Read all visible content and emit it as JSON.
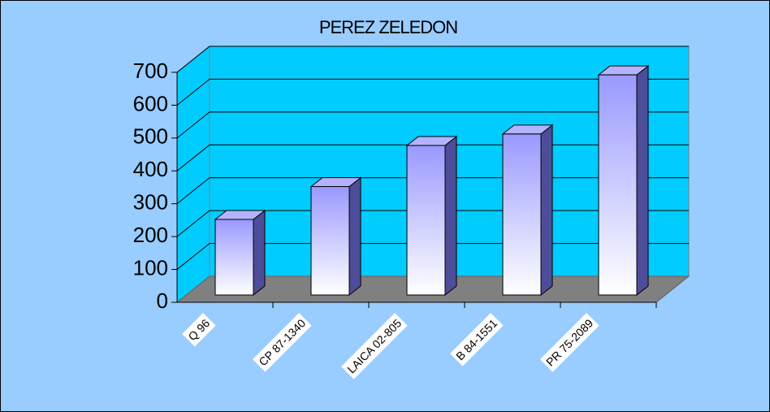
{
  "chart_data": {
    "type": "bar3d",
    "title": "PEREZ ZELEDON",
    "categories": [
      "Q 96",
      "CP 87-1340",
      "LAICA 02-805",
      "B 84-1551",
      "PR 75-2089"
    ],
    "values": [
      230,
      330,
      455,
      490,
      670
    ],
    "color": "#9999ff",
    "ylim": [
      0,
      700
    ],
    "yticks": [
      0,
      100,
      200,
      300,
      400,
      500,
      600,
      700
    ],
    "grid": true
  }
}
